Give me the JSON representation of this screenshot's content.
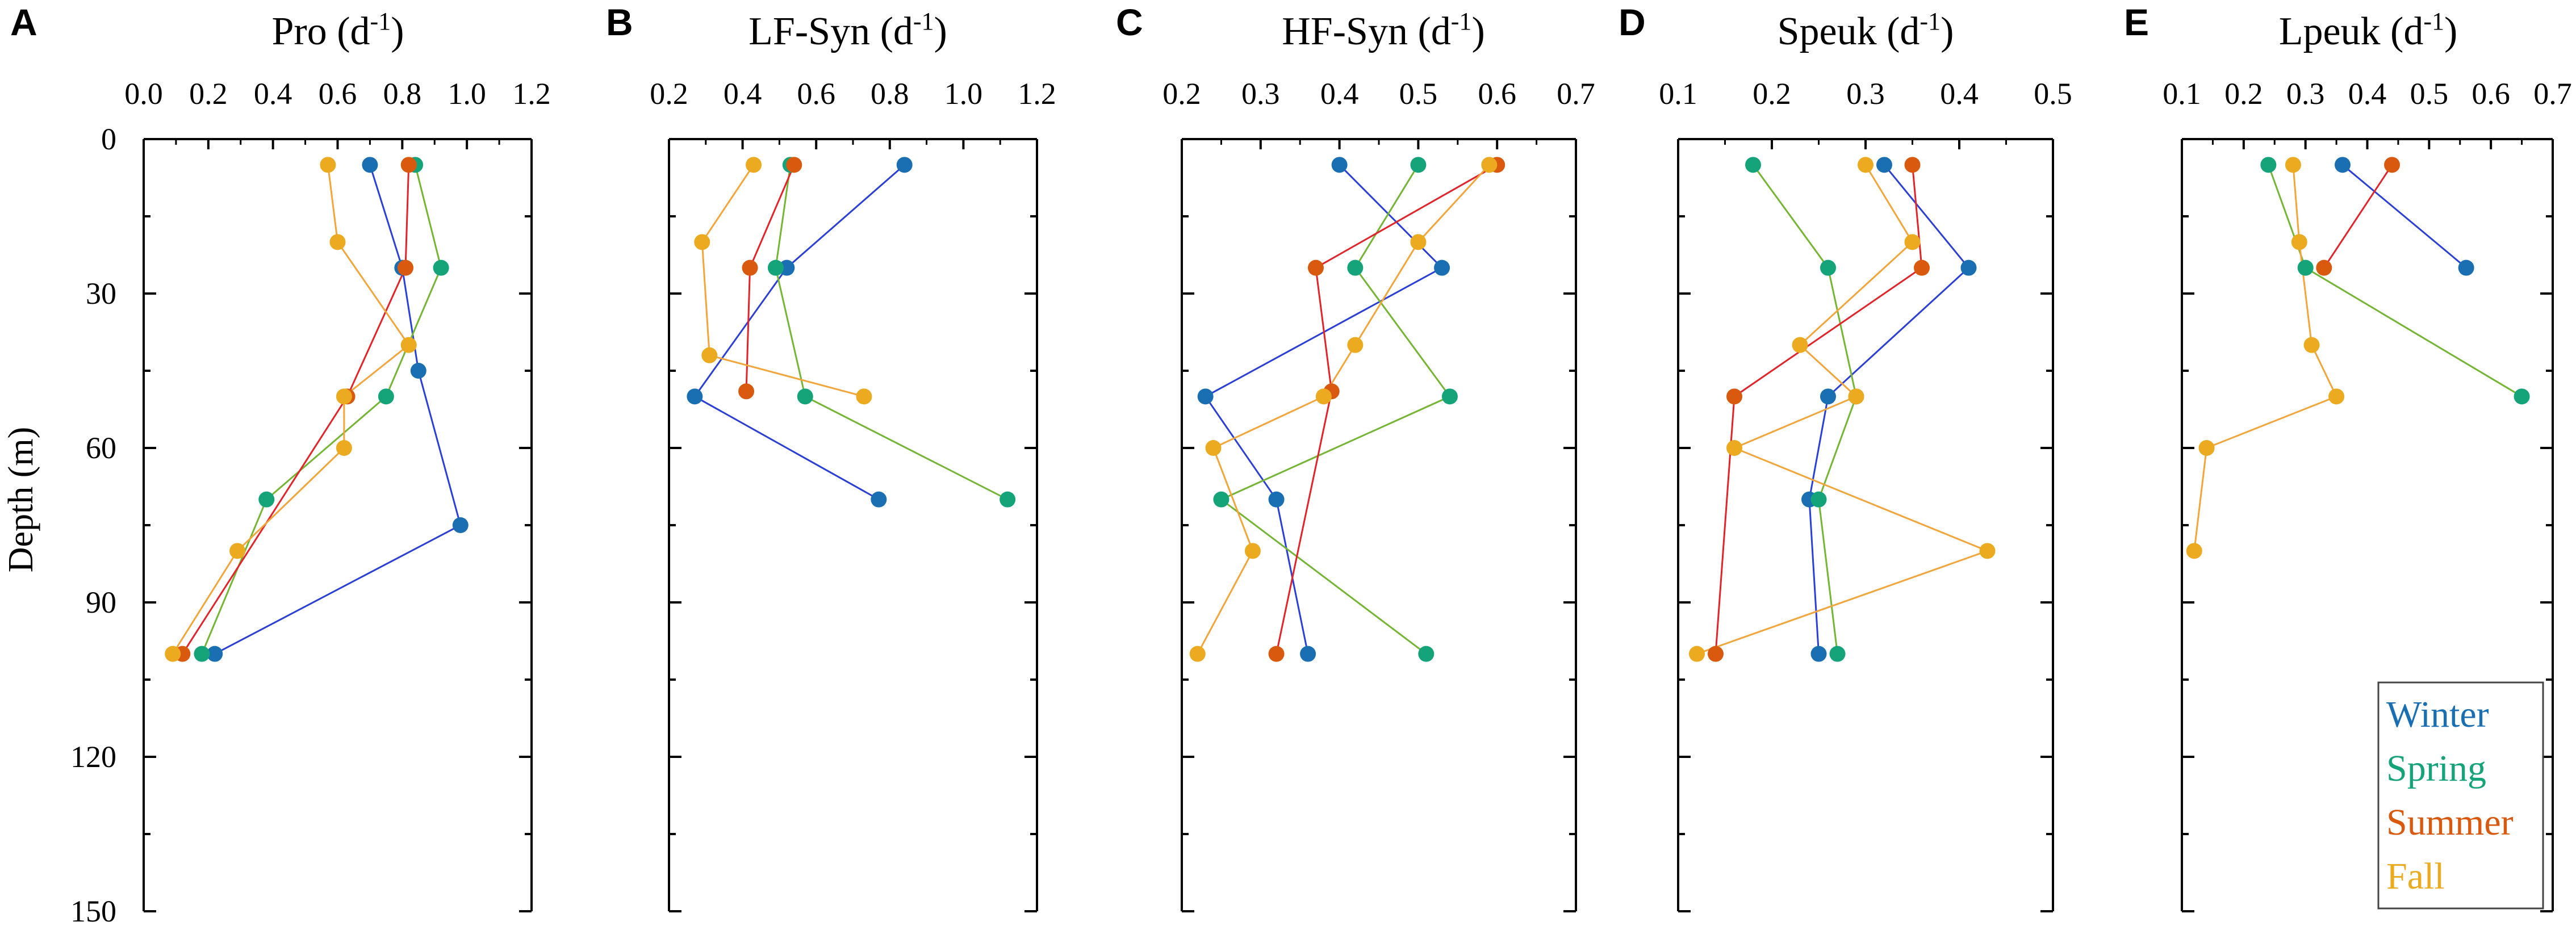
{
  "season_colors": {
    "Winter": "#1a6fb3",
    "Spring": "#15a37a",
    "Summer": "#d9590e",
    "Fall": "#ebaa1f"
  },
  "line_colors": {
    "Winter": "#2a3fd6",
    "Spring": "#74b534",
    "Summer": "#e0242a",
    "Fall": "#f2a53a"
  },
  "legend": {
    "entries": [
      "Winter",
      "Spring",
      "Summer",
      "Fall"
    ],
    "placement": "bottom-right of panel E"
  },
  "chart_data": [
    {
      "panel": "A",
      "type": "scatter",
      "title": "Pro",
      "unit_base": "(d",
      "unit_sup": "-1",
      "unit_end": ")",
      "xlabel": "",
      "ylabel": "Depth (m)",
      "xlim": [
        0.0,
        1.2
      ],
      "xticks": [
        "0.0",
        "0.2",
        "0.4",
        "0.6",
        "0.8",
        "1.0",
        "1.2"
      ],
      "ylim": [
        0,
        150
      ],
      "yticks": [
        "0",
        "30",
        "60",
        "90",
        "120",
        "150"
      ],
      "series": [
        {
          "name": "Winter",
          "points": [
            [
              0.7,
              5
            ],
            [
              0.8,
              25
            ],
            [
              0.85,
              45
            ],
            [
              0.98,
              75
            ],
            [
              0.22,
              100
            ]
          ]
        },
        {
          "name": "Spring",
          "points": [
            [
              0.84,
              5
            ],
            [
              0.92,
              25
            ],
            [
              0.75,
              50
            ],
            [
              0.38,
              70
            ],
            [
              0.18,
              100
            ]
          ]
        },
        {
          "name": "Summer",
          "points": [
            [
              0.82,
              5
            ],
            [
              0.81,
              25
            ],
            [
              0.63,
              50
            ],
            [
              0.12,
              100
            ]
          ]
        },
        {
          "name": "Fall",
          "points": [
            [
              0.57,
              5
            ],
            [
              0.6,
              20
            ],
            [
              0.82,
              40
            ],
            [
              0.62,
              50
            ],
            [
              0.62,
              60
            ],
            [
              0.29,
              80
            ],
            [
              0.09,
              100
            ]
          ]
        }
      ]
    },
    {
      "panel": "B",
      "type": "scatter",
      "title": "LF-Syn",
      "unit_base": "(d",
      "unit_sup": "-1",
      "unit_end": ")",
      "xlim": [
        0.2,
        1.2
      ],
      "xticks": [
        "0.2",
        "0.4",
        "0.6",
        "0.8",
        "1.0",
        "1.2"
      ],
      "ylim": [
        0,
        150
      ],
      "series": [
        {
          "name": "Winter",
          "points": [
            [
              0.84,
              5
            ],
            [
              0.52,
              25
            ],
            [
              0.27,
              50
            ],
            [
              0.77,
              70
            ]
          ]
        },
        {
          "name": "Spring",
          "points": [
            [
              0.53,
              5
            ],
            [
              0.49,
              25
            ],
            [
              0.57,
              50
            ],
            [
              1.12,
              70
            ]
          ]
        },
        {
          "name": "Summer",
          "points": [
            [
              0.54,
              5
            ],
            [
              0.42,
              25
            ],
            [
              0.41,
              49
            ]
          ]
        },
        {
          "name": "Fall",
          "points": [
            [
              0.43,
              5
            ],
            [
              0.29,
              20
            ],
            [
              0.31,
              42
            ],
            [
              0.73,
              50
            ]
          ]
        }
      ]
    },
    {
      "panel": "C",
      "type": "scatter",
      "title": "HF-Syn",
      "unit_base": "(d",
      "unit_sup": "-1",
      "unit_end": ")",
      "xlim": [
        0.2,
        0.7
      ],
      "xticks": [
        "0.2",
        "0.3",
        "0.4",
        "0.5",
        "0.6",
        "0.7"
      ],
      "ylim": [
        0,
        150
      ],
      "series": [
        {
          "name": "Winter",
          "points": [
            [
              0.4,
              5
            ],
            [
              0.53,
              25
            ],
            [
              0.23,
              50
            ],
            [
              0.32,
              70
            ],
            [
              0.36,
              100
            ]
          ]
        },
        {
          "name": "Spring",
          "points": [
            [
              0.5,
              5
            ],
            [
              0.42,
              25
            ],
            [
              0.54,
              50
            ],
            [
              0.25,
              70
            ],
            [
              0.51,
              100
            ]
          ]
        },
        {
          "name": "Summer",
          "points": [
            [
              0.6,
              5
            ],
            [
              0.37,
              25
            ],
            [
              0.39,
              49
            ],
            [
              0.32,
              100
            ]
          ]
        },
        {
          "name": "Fall",
          "points": [
            [
              0.59,
              5
            ],
            [
              0.5,
              20
            ],
            [
              0.42,
              40
            ],
            [
              0.38,
              50
            ],
            [
              0.24,
              60
            ],
            [
              0.29,
              80
            ],
            [
              0.22,
              100
            ]
          ]
        }
      ]
    },
    {
      "panel": "D",
      "type": "scatter",
      "title": "Speuk",
      "unit_base": "(d",
      "unit_sup": "-1",
      "unit_end": ")",
      "xlim": [
        0.1,
        0.5
      ],
      "xticks": [
        "0.1",
        "0.2",
        "0.3",
        "0.4",
        "0.5"
      ],
      "ylim": [
        0,
        150
      ],
      "series": [
        {
          "name": "Winter",
          "points": [
            [
              0.32,
              5
            ],
            [
              0.41,
              25
            ],
            [
              0.26,
              50
            ],
            [
              0.24,
              70
            ],
            [
              0.25,
              100
            ]
          ]
        },
        {
          "name": "Spring",
          "points": [
            [
              0.18,
              5
            ],
            [
              0.26,
              25
            ],
            [
              0.29,
              50
            ],
            [
              0.25,
              70
            ],
            [
              0.27,
              100
            ]
          ]
        },
        {
          "name": "Summer",
          "points": [
            [
              0.35,
              5
            ],
            [
              0.36,
              25
            ],
            [
              0.16,
              50
            ],
            [
              0.14,
              100
            ]
          ]
        },
        {
          "name": "Fall",
          "points": [
            [
              0.3,
              5
            ],
            [
              0.35,
              20
            ],
            [
              0.23,
              40
            ],
            [
              0.29,
              50
            ],
            [
              0.16,
              60
            ],
            [
              0.43,
              80
            ],
            [
              0.12,
              100
            ]
          ]
        }
      ]
    },
    {
      "panel": "E",
      "type": "scatter",
      "title": "Lpeuk",
      "unit_base": "(d",
      "unit_sup": "-1",
      "unit_end": ")",
      "xlim": [
        0.1,
        0.7
      ],
      "xticks": [
        "0.1",
        "0.2",
        "0.3",
        "0.4",
        "0.5",
        "0.6",
        "0.7"
      ],
      "ylim": [
        0,
        150
      ],
      "series": [
        {
          "name": "Winter",
          "points": [
            [
              0.36,
              5
            ],
            [
              0.56,
              25
            ]
          ]
        },
        {
          "name": "Spring",
          "points": [
            [
              0.24,
              5
            ],
            [
              0.3,
              25
            ],
            [
              0.65,
              50
            ]
          ]
        },
        {
          "name": "Summer",
          "points": [
            [
              0.44,
              5
            ],
            [
              0.33,
              25
            ]
          ]
        },
        {
          "name": "Fall",
          "points": [
            [
              0.28,
              5
            ],
            [
              0.29,
              20
            ],
            [
              0.31,
              40
            ],
            [
              0.35,
              50
            ],
            [
              0.14,
              60
            ],
            [
              0.12,
              80
            ]
          ]
        }
      ]
    }
  ]
}
